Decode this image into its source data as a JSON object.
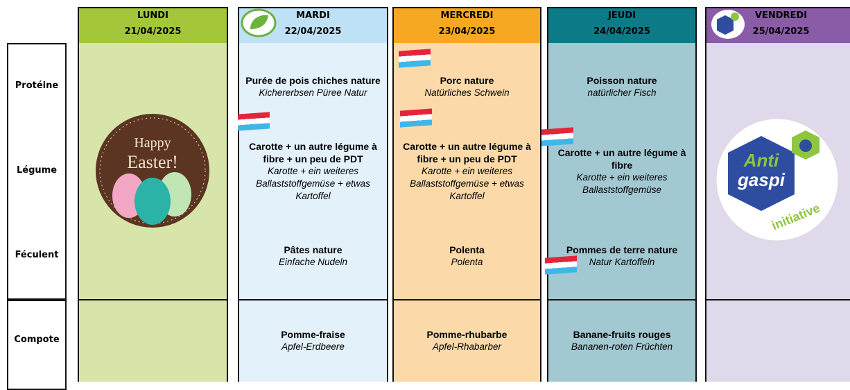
{
  "row_labels": [
    "Protéine",
    "Légume",
    "Féculent",
    "Compote"
  ],
  "days": [
    {
      "name": "LUNDI",
      "date": "21/04/2025",
      "badge": [
        "Happy",
        "Easter!"
      ],
      "items": {}
    },
    {
      "name": "MARDI",
      "date": "22/04/2025",
      "items": {
        "proteine": {
          "fr": "Purée de pois chiches nature",
          "de": "Kichererbsen Püree Natur"
        },
        "legume": {
          "fr": "Carotte + un autre légume à fibre + un peu de PDT",
          "de": "Karotte + ein weiteres Ballaststoffgemüse + etwas Kartoffel"
        },
        "feculent": {
          "fr": "Pâtes nature",
          "de": "Einfache Nudeln"
        },
        "compote": {
          "fr": "Pomme-fraise",
          "de": "Apfel-Erdbeere"
        }
      }
    },
    {
      "name": "MERCREDI",
      "date": "23/04/2025",
      "items": {
        "proteine": {
          "fr": "Porc nature",
          "de": "Natürliches Schwein"
        },
        "legume": {
          "fr": "Carotte + un autre légume à fibre + un peu de PDT",
          "de": "Karotte + ein weiteres Ballaststoffgemüse + etwas Kartoffel"
        },
        "feculent": {
          "fr": "Polenta",
          "de": "Polenta"
        },
        "compote": {
          "fr": "Pomme-rhubarbe",
          "de": "Apfel-Rhabarber"
        }
      }
    },
    {
      "name": "JEUDI",
      "date": "24/04/2025",
      "items": {
        "proteine": {
          "fr": "Poisson nature",
          "de": "natürlicher Fisch"
        },
        "legume": {
          "fr": "Carotte + un autre légume à fibre",
          "de": "Karotte + ein weiteres Ballaststoffgemüse"
        },
        "feculent": {
          "fr": "Pommes de terre nature",
          "de": "Natur Kartoffeln"
        },
        "compote": {
          "fr": "Banane-fruits rouges",
          "de": "Bananen-roten Früchten"
        }
      }
    },
    {
      "name": "VENDREDI",
      "date": "25/04/2025",
      "badge": [
        "Anti",
        "gaspi",
        "initiative"
      ],
      "items": {}
    }
  ]
}
